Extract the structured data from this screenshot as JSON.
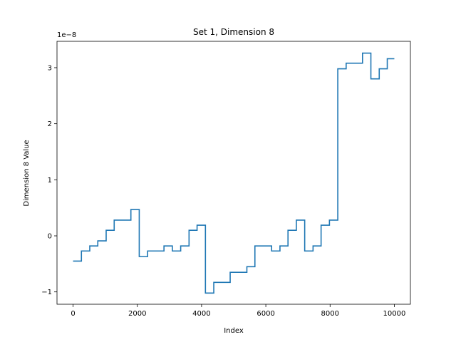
{
  "chart_data": {
    "type": "line",
    "step": "post",
    "title": "Set 1, Dimension 8",
    "xlabel": "Index",
    "ylabel": "Dimension 8 Value",
    "offset_text": "1e−8",
    "xlim": [
      -500,
      10500
    ],
    "ylim": [
      -1.22,
      3.47
    ],
    "xticks": [
      0,
      2000,
      4000,
      6000,
      8000,
      10000
    ],
    "xtick_labels": [
      "0",
      "2000",
      "4000",
      "6000",
      "8000",
      "10000"
    ],
    "yticks": [
      -1,
      0,
      1,
      2,
      3
    ],
    "ytick_labels": [
      "−1",
      "0",
      "1",
      "2",
      "3"
    ],
    "grid": false,
    "line_color": "#1f77b4",
    "series": [
      {
        "x": [
          0,
          260,
          520,
          770,
          1030,
          1280,
          1800,
          2060,
          2320,
          2830,
          3090,
          3350,
          3610,
          3860,
          4120,
          4380,
          4890,
          5410,
          5660,
          6180,
          6440,
          6690,
          6950,
          7210,
          7470,
          7720,
          7980,
          8240,
          8500,
          9010,
          9270,
          9530,
          9780,
          10000
        ],
        "y": [
          -0.45,
          -0.27,
          -0.18,
          -0.09,
          0.1,
          0.28,
          0.47,
          -0.37,
          -0.27,
          -0.18,
          -0.27,
          -0.18,
          0.1,
          0.19,
          -1.02,
          -0.83,
          -0.65,
          -0.55,
          -0.18,
          -0.27,
          -0.18,
          0.1,
          0.28,
          -0.27,
          -0.18,
          0.19,
          0.28,
          2.98,
          3.08,
          3.26,
          2.8,
          2.98,
          3.16,
          3.16
        ]
      }
    ]
  }
}
